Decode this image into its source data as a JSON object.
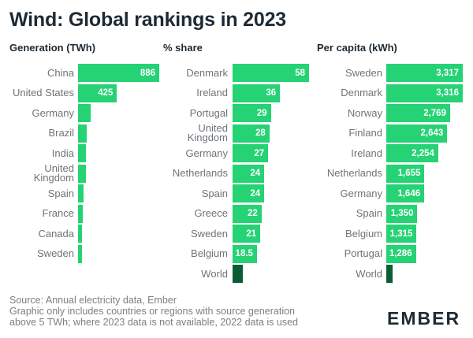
{
  "title": "Wind: Global rankings in 2023",
  "chart_data": [
    {
      "type": "bar",
      "orientation": "horizontal",
      "title": "Generation (TWh)",
      "categories": [
        "China",
        "United States",
        "Germany",
        "Brazil",
        "India",
        "United Kingdom",
        "Spain",
        "France",
        "Canada",
        "Sweden"
      ],
      "values": [
        886,
        425,
        140,
        95,
        82,
        82,
        62,
        50,
        36,
        33
      ],
      "labels": [
        "886",
        "425",
        "",
        "",
        "",
        "",
        "",
        "",
        "",
        ""
      ],
      "xlim": [
        0,
        886
      ]
    },
    {
      "type": "bar",
      "orientation": "horizontal",
      "title": "% share",
      "categories": [
        "Denmark",
        "Ireland",
        "Portugal",
        "United Kingdom",
        "Germany",
        "Netherlands",
        "Spain",
        "Greece",
        "Sweden",
        "Belgium",
        "World"
      ],
      "values": [
        58,
        36,
        29,
        28,
        27,
        24,
        24,
        22,
        21,
        18.5,
        7.8
      ],
      "labels": [
        "58",
        "36",
        "29",
        "28",
        "27",
        "24",
        "24",
        "22",
        "21",
        "18.5",
        ""
      ],
      "xlim": [
        0,
        58
      ]
    },
    {
      "type": "bar",
      "orientation": "horizontal",
      "title": "Per capita (kWh)",
      "categories": [
        "Sweden",
        "Denmark",
        "Norway",
        "Finland",
        "Ireland",
        "Netherlands",
        "Germany",
        "Spain",
        "Belgium",
        "Portugal",
        "World"
      ],
      "values": [
        3317,
        3316,
        2769,
        2643,
        2254,
        1655,
        1646,
        1350,
        1315,
        1286,
        290
      ],
      "labels": [
        "3,317",
        "3,316",
        "2,769",
        "2,643",
        "2,254",
        "1,655",
        "1,646",
        "1,350",
        "1,315",
        "1,286",
        ""
      ],
      "xlim": [
        0,
        3317
      ]
    }
  ],
  "highlight_series": "World",
  "colors": {
    "bar": "#25d274",
    "world": "#0b5d34",
    "title": "#1e2a33",
    "label": "#6e7479"
  },
  "footer": {
    "line1": "Source: Annual electricity data, Ember",
    "line2": "Graphic only includes countries or regions with source generation",
    "line3": "above 5 TWh; where 2023 data is not available, 2022 data is used"
  },
  "logo": {
    "text": "EMBER"
  }
}
